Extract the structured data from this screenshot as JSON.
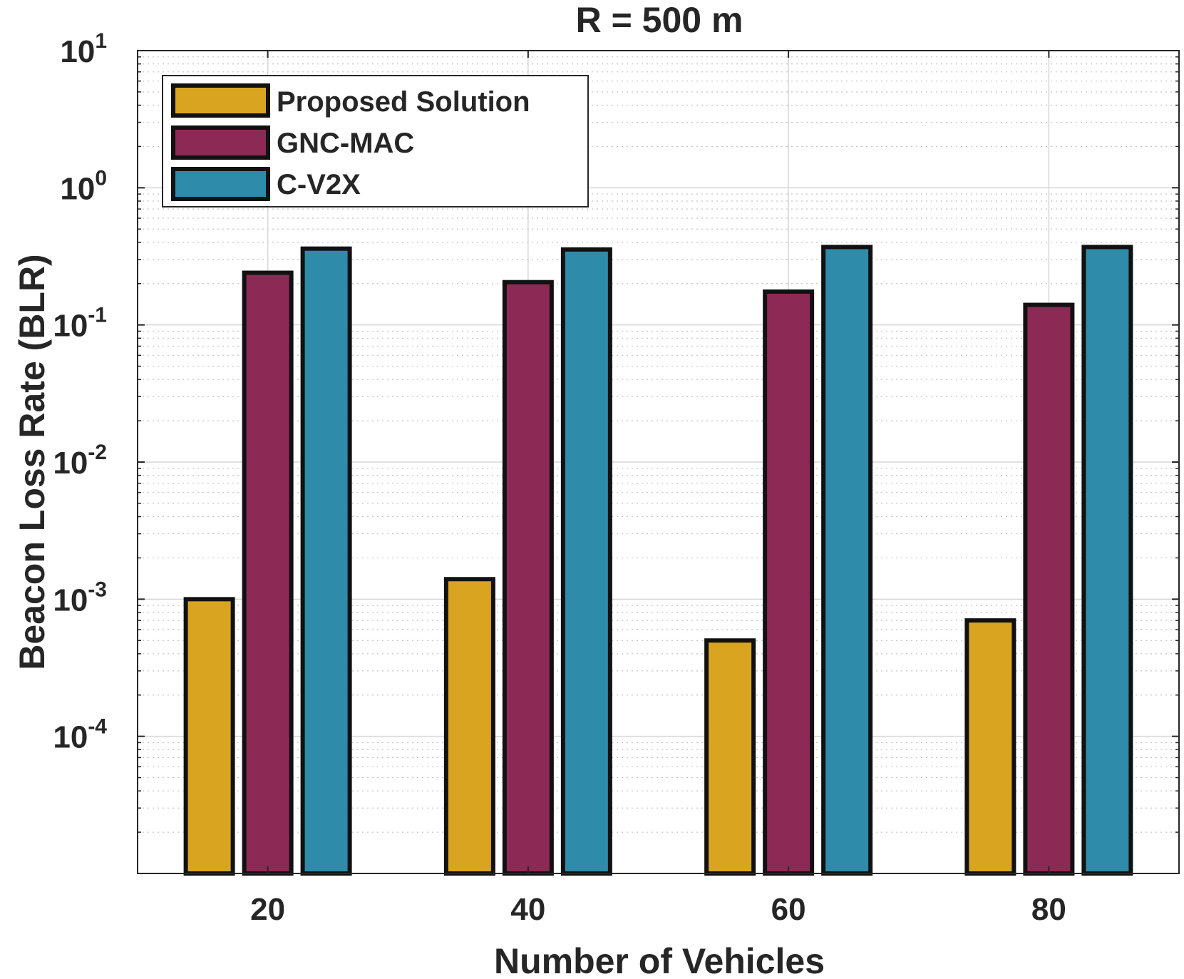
{
  "chart_data": {
    "type": "bar",
    "title": "R = 500 m",
    "xlabel": "Number of Vehicles",
    "ylabel": "Beacon Loss Rate (BLR)",
    "yscale": "log",
    "ylim": [
      1e-05,
      10
    ],
    "categories": [
      "20",
      "40",
      "60",
      "80"
    ],
    "y_ticks": [
      {
        "base": "10",
        "exp": "1",
        "value": 10
      },
      {
        "base": "10",
        "exp": "0",
        "value": 1
      },
      {
        "base": "10",
        "exp": "-1",
        "value": 0.1
      },
      {
        "base": "10",
        "exp": "-2",
        "value": 0.01
      },
      {
        "base": "10",
        "exp": "-3",
        "value": 0.001
      },
      {
        "base": "10",
        "exp": "-4",
        "value": 0.0001
      }
    ],
    "grid": true,
    "legend_position": "top-left",
    "series": [
      {
        "name": "Proposed Solution",
        "color": "#D9A521",
        "values": [
          0.001,
          0.0014,
          0.0005,
          0.0007
        ]
      },
      {
        "name": "GNC-MAC",
        "color": "#8C2A55",
        "values": [
          0.24,
          0.205,
          0.175,
          0.14
        ]
      },
      {
        "name": "C-V2X",
        "color": "#2E8BAA",
        "values": [
          0.36,
          0.355,
          0.37,
          0.37
        ]
      }
    ]
  }
}
